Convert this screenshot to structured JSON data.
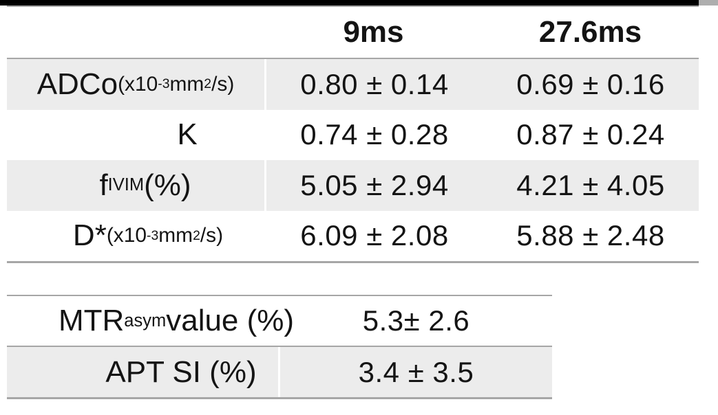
{
  "colors": {
    "top_bar": "#000000",
    "grid_line": "#a6a6a6",
    "row_band": "#ececec",
    "text": "#141414",
    "background": "#ffffff"
  },
  "ivim_table": {
    "col_headers": [
      {
        "label": "9ms"
      },
      {
        "label": "27.6ms"
      }
    ],
    "rows": [
      {
        "label": [
          {
            "t": "ADCo"
          },
          {
            "t": " (x10",
            "style": "small"
          },
          {
            "t": "-3",
            "style": "sup-small"
          },
          {
            "t": " mm",
            "style": "small"
          },
          {
            "t": "2",
            "style": "sup-small"
          },
          {
            "t": "/s)",
            "style": "small"
          }
        ],
        "values": [
          "0.80 ± 0.14",
          "0.69 ± 0.16"
        ]
      },
      {
        "label": [
          {
            "t": "K"
          }
        ],
        "values": [
          "0.74 ± 0.28",
          "0.87 ± 0.24"
        ]
      },
      {
        "label": [
          {
            "t": "f"
          },
          {
            "t": "IVIM",
            "style": "sub"
          },
          {
            "t": " (%)"
          }
        ],
        "values": [
          "5.05 ± 2.94",
          "4.21 ± 4.05"
        ]
      },
      {
        "label": [
          {
            "t": "D*"
          },
          {
            "t": " (x10",
            "style": "small"
          },
          {
            "t": "-3",
            "style": "sup-small"
          },
          {
            "t": " mm",
            "style": "small"
          },
          {
            "t": "2",
            "style": "sup-small"
          },
          {
            "t": "/s)",
            "style": "small"
          }
        ],
        "values": [
          "6.09 ± 2.08",
          "5.88 ± 2.48"
        ]
      }
    ]
  },
  "cest_table": {
    "rows": [
      {
        "label": [
          {
            "t": "MTR"
          },
          {
            "t": "asym",
            "style": "sub"
          },
          {
            "t": " value (%)"
          }
        ],
        "value": "5.3± 2.6"
      },
      {
        "label": [
          {
            "t": "APT SI (%)"
          }
        ],
        "value": "3.4 ± 3.5"
      }
    ]
  }
}
